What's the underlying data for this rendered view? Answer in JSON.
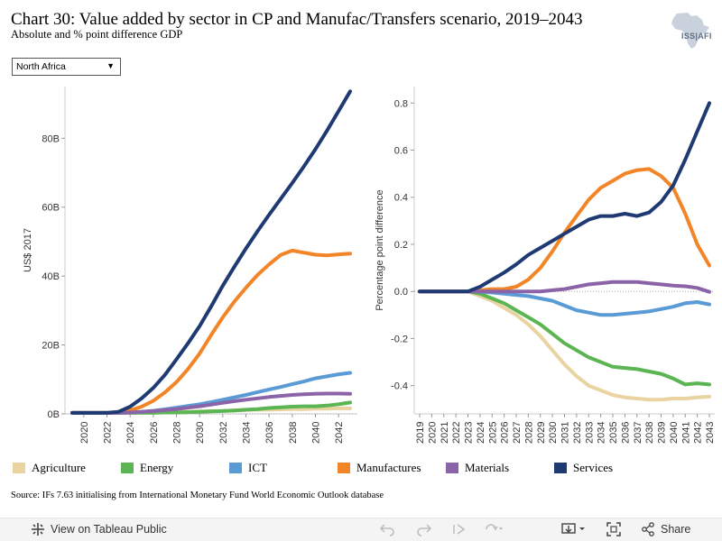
{
  "header": {
    "title": "Chart 30: Value added by sector in CP and Manufac/Transfers scenario, 2019–2043",
    "subtitle": "Absolute and % point difference GDP",
    "logo_text": "ISS|AFI"
  },
  "filter": {
    "selected": "North Africa"
  },
  "source": "Source: IFs 7.63 initialising from International Monetary Fund World Economic Outlook database",
  "toolbar": {
    "view_label": "View on Tableau Public",
    "share_label": "Share"
  },
  "chart_data": [
    {
      "type": "line",
      "ylabel": "US$ 2017",
      "ylim": [
        0,
        95
      ],
      "yticks": [
        0,
        20,
        40,
        60,
        80
      ],
      "ytick_labels": [
        "0B",
        "20B",
        "40B",
        "60B",
        "80B"
      ],
      "x": [
        2019,
        2020,
        2021,
        2022,
        2023,
        2024,
        2025,
        2026,
        2027,
        2028,
        2029,
        2030,
        2031,
        2032,
        2033,
        2034,
        2035,
        2036,
        2037,
        2038,
        2039,
        2040,
        2041,
        2042,
        2043
      ],
      "xticks": [
        2020,
        2022,
        2024,
        2026,
        2028,
        2030,
        2032,
        2034,
        2036,
        2038,
        2040,
        2042
      ],
      "series": [
        {
          "name": "Agriculture",
          "color": "#e8d3a1",
          "values": [
            0.3,
            0.3,
            0.3,
            0.3,
            0.3,
            0.3,
            0.4,
            0.4,
            0.5,
            0.5,
            0.6,
            0.7,
            0.8,
            0.9,
            1.0,
            1.1,
            1.2,
            1.2,
            1.3,
            1.4,
            1.4,
            1.5,
            1.5,
            1.6,
            1.6
          ]
        },
        {
          "name": "Energy",
          "color": "#5ab552",
          "values": [
            0.3,
            0.3,
            0.3,
            0.3,
            0.3,
            0.3,
            0.3,
            0.3,
            0.4,
            0.4,
            0.5,
            0.6,
            0.7,
            0.8,
            1.0,
            1.2,
            1.4,
            1.7,
            1.9,
            2.1,
            2.2,
            2.2,
            2.4,
            2.8,
            3.3
          ]
        },
        {
          "name": "ICT",
          "color": "#5b9bd5",
          "values": [
            0.3,
            0.3,
            0.3,
            0.3,
            0.3,
            0.4,
            0.6,
            0.9,
            1.3,
            1.8,
            2.3,
            2.8,
            3.4,
            4.1,
            4.8,
            5.5,
            6.3,
            7.1,
            7.8,
            8.6,
            9.4,
            10.3,
            10.9,
            11.5,
            11.9
          ]
        },
        {
          "name": "Manufactures",
          "color": "#f28527",
          "values": [
            0.3,
            0.3,
            0.3,
            0.3,
            0.4,
            1.0,
            2.1,
            3.8,
            6.2,
            9.2,
            13.0,
            17.5,
            22.9,
            28.0,
            32.6,
            36.6,
            40.3,
            43.4,
            46.1,
            47.4,
            46.8,
            46.2,
            46.0,
            46.3,
            46.5
          ]
        },
        {
          "name": "Materials",
          "color": "#8b63a8",
          "values": [
            0.3,
            0.3,
            0.3,
            0.3,
            0.3,
            0.4,
            0.6,
            0.8,
            1.1,
            1.4,
            1.8,
            2.2,
            2.7,
            3.2,
            3.7,
            4.1,
            4.5,
            4.9,
            5.2,
            5.5,
            5.7,
            5.8,
            5.9,
            5.9,
            5.8
          ]
        },
        {
          "name": "Services",
          "color": "#1f3a73",
          "values": [
            0.3,
            0.3,
            0.3,
            0.3,
            0.6,
            2.1,
            4.5,
            7.5,
            11.3,
            15.8,
            20.5,
            25.5,
            31.2,
            37.2,
            42.7,
            48.0,
            53.0,
            57.8,
            62.4,
            67.0,
            71.8,
            76.8,
            82.2,
            87.9,
            93.6
          ]
        }
      ]
    },
    {
      "type": "line",
      "ylabel": "Percentage point difference",
      "ylim": [
        -0.52,
        0.87
      ],
      "yticks": [
        -0.4,
        -0.2,
        0.0,
        0.2,
        0.4,
        0.6,
        0.8
      ],
      "ytick_labels": [
        "-0.4",
        "-0.2",
        "0.0",
        "0.2",
        "0.4",
        "0.6",
        "0.8"
      ],
      "x": [
        2019,
        2020,
        2021,
        2022,
        2023,
        2024,
        2025,
        2026,
        2027,
        2028,
        2029,
        2030,
        2031,
        2032,
        2033,
        2034,
        2035,
        2036,
        2037,
        2038,
        2039,
        2040,
        2041,
        2042,
        2043
      ],
      "xticks": [
        2019,
        2020,
        2021,
        2022,
        2023,
        2024,
        2025,
        2026,
        2027,
        2028,
        2029,
        2030,
        2031,
        2032,
        2033,
        2034,
        2035,
        2036,
        2037,
        2038,
        2039,
        2040,
        2041,
        2042,
        2043
      ],
      "series": [
        {
          "name": "Agriculture",
          "color": "#e8d3a1",
          "values": [
            0,
            0,
            0,
            0,
            0,
            -0.02,
            -0.04,
            -0.07,
            -0.1,
            -0.14,
            -0.19,
            -0.25,
            -0.31,
            -0.36,
            -0.4,
            -0.42,
            -0.44,
            -0.45,
            -0.455,
            -0.46,
            -0.46,
            -0.455,
            -0.455,
            -0.45,
            -0.447
          ]
        },
        {
          "name": "Energy",
          "color": "#5ab552",
          "values": [
            0,
            0,
            0,
            0,
            0,
            -0.01,
            -0.03,
            -0.05,
            -0.08,
            -0.11,
            -0.14,
            -0.18,
            -0.22,
            -0.25,
            -0.28,
            -0.3,
            -0.32,
            -0.325,
            -0.33,
            -0.34,
            -0.35,
            -0.37,
            -0.395,
            -0.39,
            -0.395
          ]
        },
        {
          "name": "ICT",
          "color": "#5b9bd5",
          "values": [
            0,
            0,
            0,
            0,
            0,
            0,
            -0.005,
            -0.01,
            -0.015,
            -0.02,
            -0.03,
            -0.04,
            -0.06,
            -0.08,
            -0.09,
            -0.1,
            -0.1,
            -0.095,
            -0.09,
            -0.085,
            -0.075,
            -0.065,
            -0.05,
            -0.045,
            -0.055
          ]
        },
        {
          "name": "Manufactures",
          "color": "#f28527",
          "values": [
            0,
            0,
            0,
            0,
            0,
            0.005,
            0.01,
            0.01,
            0.02,
            0.05,
            0.1,
            0.17,
            0.25,
            0.32,
            0.39,
            0.44,
            0.47,
            0.5,
            0.515,
            0.52,
            0.49,
            0.44,
            0.33,
            0.2,
            0.11
          ]
        },
        {
          "name": "Materials",
          "color": "#8b63a8",
          "values": [
            0,
            0,
            0,
            0,
            0,
            0,
            0,
            0,
            0,
            0,
            0,
            0.005,
            0.01,
            0.02,
            0.03,
            0.035,
            0.04,
            0.04,
            0.04,
            0.035,
            0.03,
            0.025,
            0.022,
            0.015,
            -0.002
          ]
        },
        {
          "name": "Services",
          "color": "#1f3a73",
          "values": [
            0,
            0,
            0,
            0,
            0,
            0.02,
            0.05,
            0.08,
            0.115,
            0.155,
            0.185,
            0.215,
            0.245,
            0.275,
            0.305,
            0.32,
            0.32,
            0.33,
            0.32,
            0.335,
            0.38,
            0.45,
            0.56,
            0.68,
            0.8
          ]
        }
      ]
    }
  ],
  "legend": [
    {
      "name": "Agriculture",
      "color": "#e8d3a1"
    },
    {
      "name": "Energy",
      "color": "#5ab552"
    },
    {
      "name": "ICT",
      "color": "#5b9bd5"
    },
    {
      "name": "Manufactures",
      "color": "#f28527"
    },
    {
      "name": "Materials",
      "color": "#8b63a8"
    },
    {
      "name": "Services",
      "color": "#1f3a73"
    }
  ]
}
